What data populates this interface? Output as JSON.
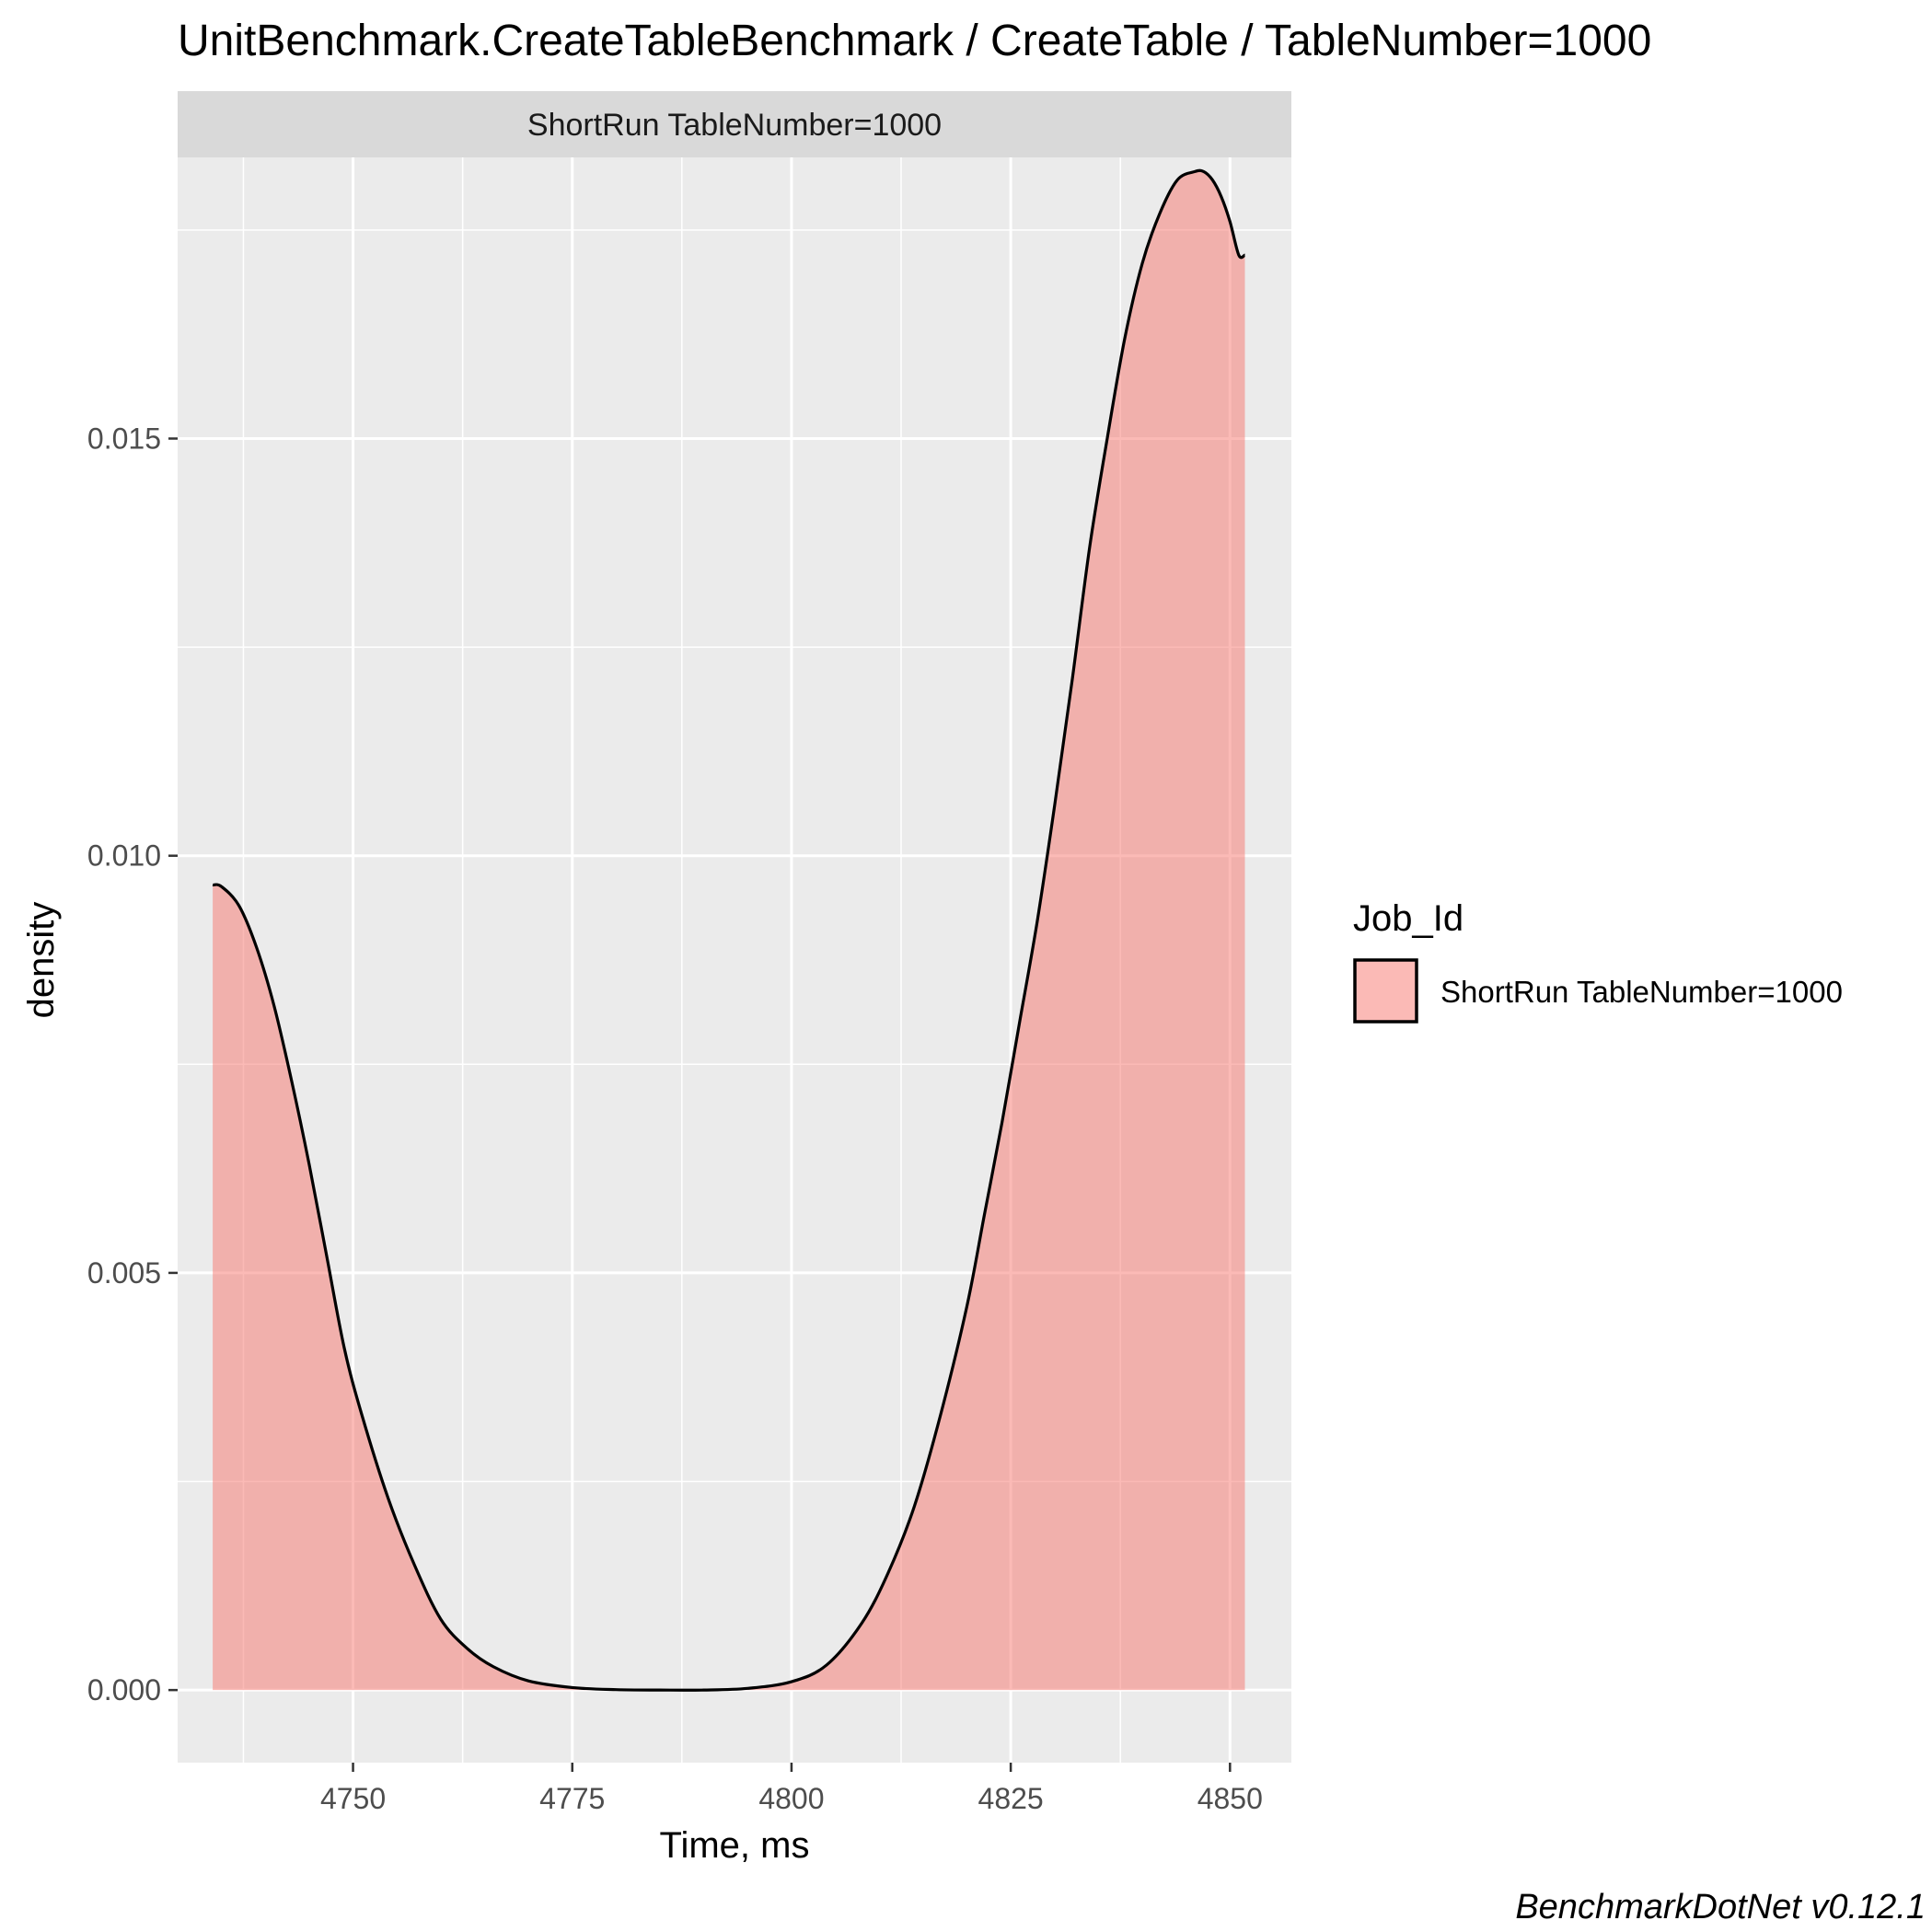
{
  "chart_data": {
    "type": "area",
    "title": "UnitBenchmark.CreateTableBenchmark / CreateTable / TableNumber=1000",
    "facet_label": "ShortRun TableNumber=1000",
    "xlabel": "Time, ms",
    "ylabel": "density",
    "xlim": [
      4730,
      4857
    ],
    "ylim": [
      -0.00087,
      0.01837
    ],
    "x_ticks": [
      4750,
      4775,
      4800,
      4825,
      4850
    ],
    "x_tick_labels": [
      "4750",
      "4775",
      "4800",
      "4825",
      "4850"
    ],
    "y_ticks": [
      0.0,
      0.005,
      0.01,
      0.015
    ],
    "y_tick_labels": [
      "0.000",
      "0.005",
      "0.010",
      "0.015"
    ],
    "legend": {
      "title": "Job_Id",
      "position": "right",
      "entries": [
        "ShortRun TableNumber=1000"
      ]
    },
    "caption": "BenchmarkDotNet v0.12.1",
    "series": [
      {
        "name": "ShortRun TableNumber=1000",
        "color": "#F8766D",
        "x": [
          4734,
          4735,
          4737,
          4739,
          4741,
          4743,
          4745,
          4747,
          4749,
          4751,
          4754,
          4757,
          4760,
          4763,
          4766,
          4770,
          4775,
          4780,
          4785,
          4790,
          4795,
          4800,
          4804,
          4808,
          4811,
          4814,
          4817,
          4820,
          4822,
          4824,
          4826,
          4828,
          4830,
          4832,
          4834,
          4836,
          4838,
          4840,
          4842,
          4844,
          4846,
          4847,
          4848,
          4849,
          4850,
          4851,
          4851.7
        ],
        "y": [
          0.00965,
          0.00963,
          0.0094,
          0.0089,
          0.0082,
          0.0073,
          0.0063,
          0.0052,
          0.0041,
          0.0033,
          0.0023,
          0.0015,
          0.00085,
          0.0005,
          0.00028,
          0.00011,
          3e-05,
          5e-06,
          0.0,
          0.0,
          2e-05,
          0.0001,
          0.0003,
          0.0008,
          0.0014,
          0.0022,
          0.0033,
          0.0046,
          0.0057,
          0.0068,
          0.008,
          0.0092,
          0.0106,
          0.0121,
          0.0137,
          0.015,
          0.0162,
          0.0171,
          0.0177,
          0.0181,
          0.0182,
          0.0182,
          0.0181,
          0.0179,
          0.0176,
          0.0172,
          0.0172
        ]
      }
    ]
  }
}
